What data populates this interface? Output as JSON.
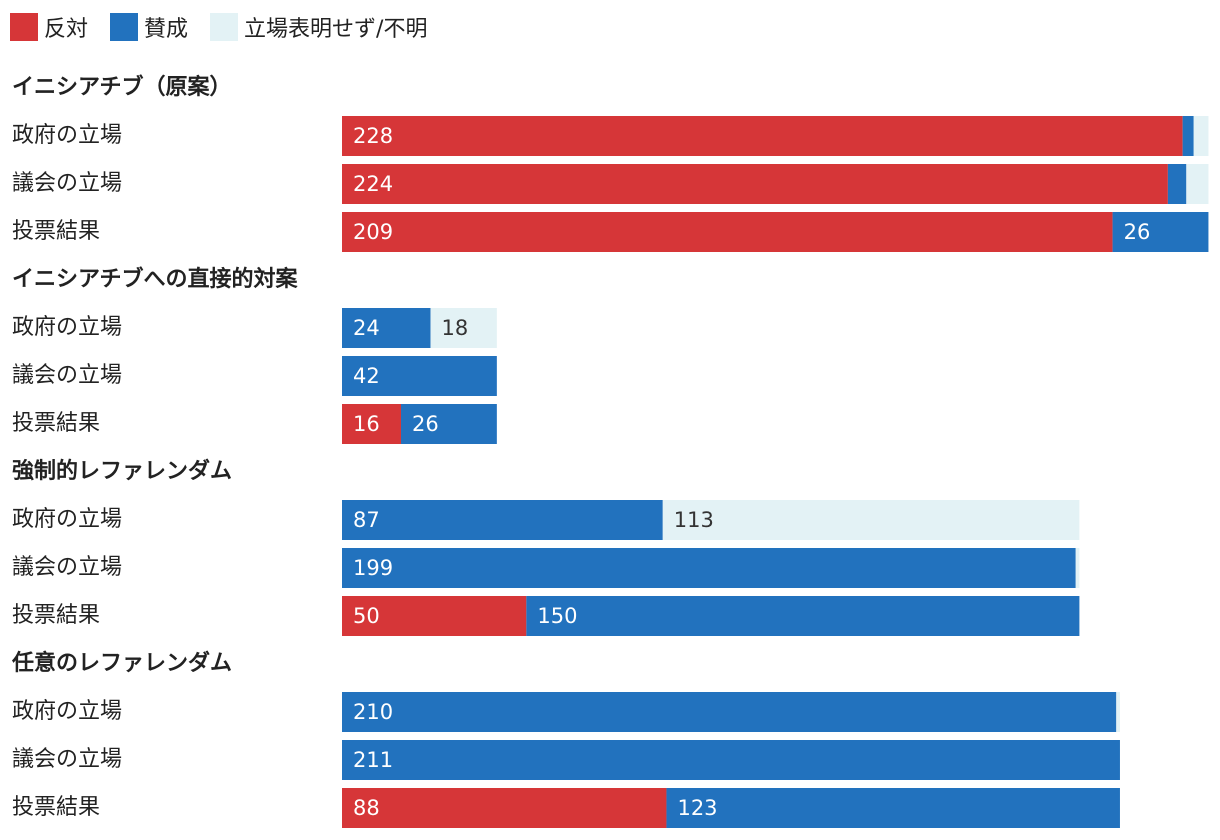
{
  "chart_data": {
    "type": "bar",
    "orientation": "horizontal",
    "stacked": true,
    "legend": [
      {
        "key": "oppose",
        "label": "反対",
        "color": "#d63638"
      },
      {
        "key": "support",
        "label": "賛成",
        "color": "#2272be"
      },
      {
        "key": "none",
        "label": "立場表明せず/不明",
        "color": "#e3f2f5"
      }
    ],
    "groups": [
      {
        "title": "イニシアチブ（原案）",
        "rows": [
          {
            "label": "政府の立場",
            "oppose": 228,
            "support": 3,
            "none": 4
          },
          {
            "label": "議会の立場",
            "oppose": 224,
            "support": 5,
            "none": 6
          },
          {
            "label": "投票結果",
            "oppose": 209,
            "support": 26,
            "none": 0
          }
        ]
      },
      {
        "title": "イニシアチブへの直接的対案",
        "rows": [
          {
            "label": "政府の立場",
            "oppose": 0,
            "support": 24,
            "none": 18
          },
          {
            "label": "議会の立場",
            "oppose": 0,
            "support": 42,
            "none": 0
          },
          {
            "label": "投票結果",
            "oppose": 16,
            "support": 26,
            "none": 0
          }
        ]
      },
      {
        "title": "強制的レファレンダム",
        "rows": [
          {
            "label": "政府の立場",
            "oppose": 0,
            "support": 87,
            "none": 113
          },
          {
            "label": "議会の立場",
            "oppose": 0,
            "support": 199,
            "none": 1
          },
          {
            "label": "投票結果",
            "oppose": 50,
            "support": 150,
            "none": 0
          }
        ]
      },
      {
        "title": "任意のレファレンダム",
        "rows": [
          {
            "label": "政府の立場",
            "oppose": 0,
            "support": 210,
            "none": 1
          },
          {
            "label": "議会の立場",
            "oppose": 0,
            "support": 211,
            "none": 0
          },
          {
            "label": "投票結果",
            "oppose": 88,
            "support": 123,
            "none": 0
          }
        ]
      }
    ]
  }
}
